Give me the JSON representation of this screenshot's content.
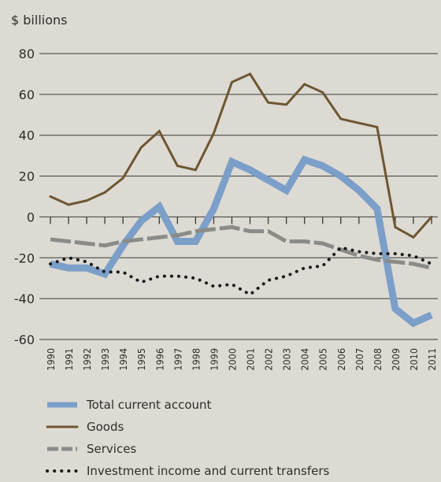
{
  "chart_data": {
    "type": "line",
    "ylabel": "$ billions",
    "ylim": [
      -60,
      80
    ],
    "yticks": [
      80,
      60,
      40,
      20,
      0,
      -20,
      -40,
      -60
    ],
    "grid": true,
    "legend_position": "bottom",
    "x": [
      "1990",
      "1991",
      "1992",
      "1993",
      "1994",
      "1995",
      "1996",
      "1997",
      "1998",
      "1999",
      "2000",
      "2001",
      "2002",
      "2003",
      "2004",
      "2005",
      "2006",
      "2007",
      "2008",
      "2009",
      "2010",
      "2011"
    ],
    "series": [
      {
        "name": "Total current account",
        "color": "#7c9fc9",
        "style": "thick-solid",
        "values": [
          -23,
          -25,
          -25,
          -28,
          -14,
          -2,
          5,
          -12,
          -12,
          4,
          27,
          23,
          18,
          13,
          28,
          25,
          20,
          13,
          4,
          -45,
          -52,
          -48
        ]
      },
      {
        "name": "Goods",
        "color": "#6e5631",
        "style": "solid",
        "values": [
          10,
          6,
          8,
          12,
          19,
          34,
          42,
          25,
          23,
          41,
          66,
          70,
          56,
          55,
          65,
          61,
          48,
          46,
          44,
          -5,
          -10,
          0
        ]
      },
      {
        "name": "Services",
        "color": "#8b8b88",
        "style": "dashed",
        "values": [
          -11,
          -12,
          -13,
          -14,
          -12,
          -11,
          -10,
          -9,
          -7,
          -6,
          -5,
          -7,
          -7,
          -12,
          -12,
          -13,
          -16,
          -19,
          -21,
          -22,
          -23,
          -25
        ]
      },
      {
        "name": "Investment income and current transfers",
        "color": "#1a1a1a",
        "style": "dotted",
        "values": [
          -23,
          -20,
          -22,
          -27,
          -27,
          -32,
          -29,
          -29,
          -30,
          -34,
          -33,
          -38,
          -31,
          -29,
          -25,
          -24,
          -15,
          -17,
          -18,
          -18,
          -19,
          -23
        ]
      }
    ]
  }
}
